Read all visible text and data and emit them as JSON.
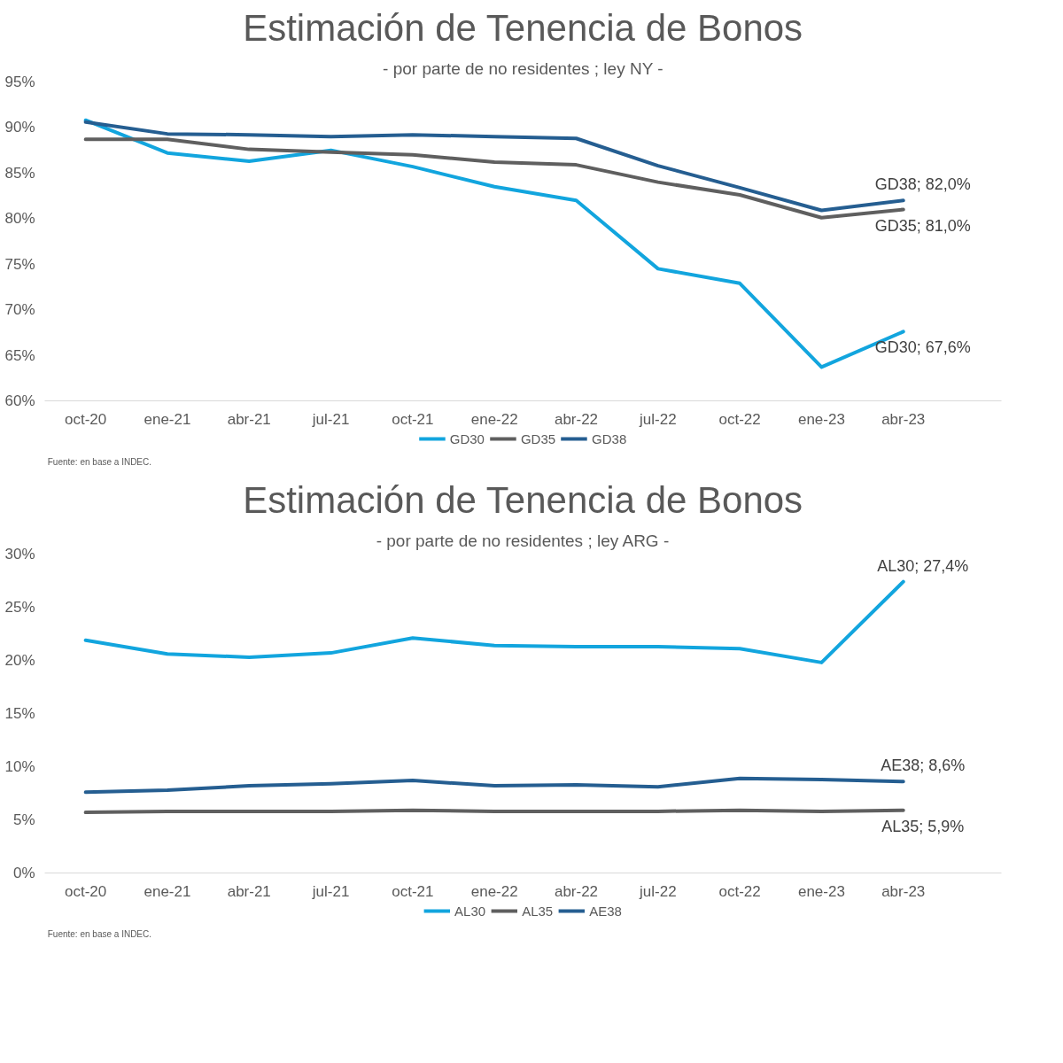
{
  "chart_data": [
    {
      "type": "line",
      "title": "Estimación de Tenencia de Bonos",
      "subtitle": "- por parte de no residentes ; ley NY -",
      "categories": [
        "oct-20",
        "ene-21",
        "abr-21",
        "jul-21",
        "oct-21",
        "ene-22",
        "abr-22",
        "jul-22",
        "oct-22",
        "ene-23",
        "abr-23"
      ],
      "series": [
        {
          "name": "GD30",
          "color": "#12a5de",
          "values": [
            90.8,
            87.2,
            86.3,
            87.5,
            85.7,
            83.5,
            82.0,
            74.5,
            72.9,
            63.7,
            67.6
          ],
          "value_labels": [
            null,
            null,
            null,
            null,
            null,
            null,
            null,
            null,
            null,
            null,
            "GD30; 67,6%"
          ]
        },
        {
          "name": "GD35",
          "color": "#5f5f5f",
          "values": [
            88.7,
            88.7,
            87.6,
            87.3,
            87.0,
            86.2,
            85.9,
            84.0,
            82.6,
            80.1,
            81.0
          ],
          "value_labels": [
            null,
            null,
            null,
            null,
            null,
            null,
            null,
            null,
            null,
            null,
            "GD35; 81,0%"
          ]
        },
        {
          "name": "GD38",
          "color": "#255e91",
          "values": [
            90.6,
            89.3,
            89.2,
            89.0,
            89.2,
            89.0,
            88.8,
            85.8,
            83.4,
            80.9,
            82.0
          ],
          "value_labels": [
            null,
            null,
            null,
            null,
            null,
            null,
            null,
            null,
            null,
            null,
            "GD38; 82,0%"
          ]
        }
      ],
      "ylim": [
        60,
        95
      ],
      "yticks": [
        {
          "value": 60,
          "label": "60%"
        },
        {
          "value": 65,
          "label": "65%"
        },
        {
          "value": 70,
          "label": "70%"
        },
        {
          "value": 75,
          "label": "75%"
        },
        {
          "value": 80,
          "label": "80%"
        },
        {
          "value": 85,
          "label": "85%"
        },
        {
          "value": 90,
          "label": "90%"
        },
        {
          "value": 95,
          "label": "95%"
        }
      ],
      "legend": "bottom",
      "annotations": [
        "Fuente: en base a INDEC."
      ]
    },
    {
      "type": "line",
      "title": "Estimación de Tenencia de Bonos",
      "subtitle": "- por parte de no residentes ; ley ARG -",
      "categories": [
        "oct-20",
        "ene-21",
        "abr-21",
        "jul-21",
        "oct-21",
        "ene-22",
        "abr-22",
        "jul-22",
        "oct-22",
        "ene-23",
        "abr-23"
      ],
      "series": [
        {
          "name": "AL30",
          "color": "#12a5de",
          "values": [
            21.9,
            20.6,
            20.3,
            20.7,
            22.1,
            21.4,
            21.3,
            21.3,
            21.1,
            19.8,
            27.4
          ],
          "value_labels": [
            null,
            null,
            null,
            null,
            null,
            null,
            null,
            null,
            null,
            null,
            "AL30; 27,4%"
          ]
        },
        {
          "name": "AL35",
          "color": "#5f5f5f",
          "values": [
            5.7,
            5.8,
            5.8,
            5.8,
            5.9,
            5.8,
            5.8,
            5.8,
            5.9,
            5.8,
            5.9
          ],
          "value_labels": [
            null,
            null,
            null,
            null,
            null,
            null,
            null,
            null,
            null,
            null,
            "AL35; 5,9%"
          ]
        },
        {
          "name": "AE38",
          "color": "#255e91",
          "values": [
            7.6,
            7.8,
            8.2,
            8.4,
            8.7,
            8.2,
            8.3,
            8.1,
            8.9,
            8.8,
            8.6
          ],
          "value_labels": [
            null,
            null,
            null,
            null,
            null,
            null,
            null,
            null,
            null,
            null,
            "AE38; 8,6%"
          ]
        }
      ],
      "ylim": [
        0,
        30
      ],
      "yticks": [
        {
          "value": 0,
          "label": "0%"
        },
        {
          "value": 5,
          "label": "5%"
        },
        {
          "value": 10,
          "label": "10%"
        },
        {
          "value": 15,
          "label": "15%"
        },
        {
          "value": 20,
          "label": "20%"
        },
        {
          "value": 25,
          "label": "25%"
        },
        {
          "value": 30,
          "label": "30%"
        }
      ],
      "legend": "bottom",
      "annotations": [
        "Fuente: en base a INDEC."
      ]
    }
  ]
}
